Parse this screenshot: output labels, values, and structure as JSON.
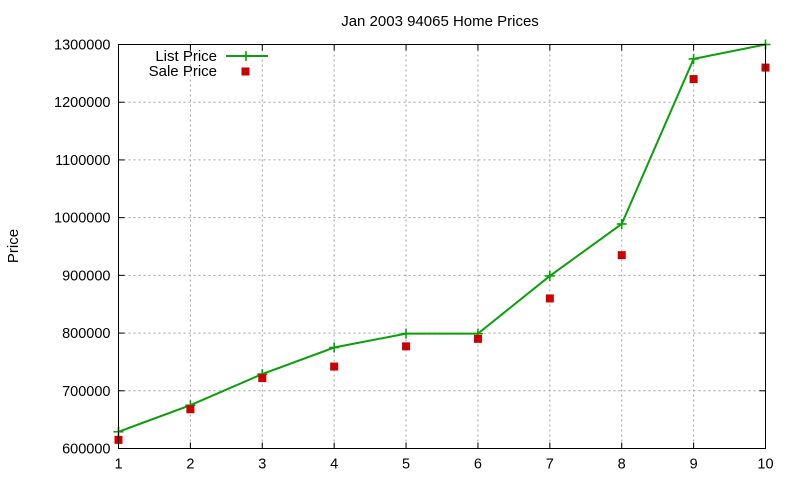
{
  "chart_data": {
    "type": "line",
    "title": "Jan 2003 94065 Home Prices",
    "xlabel": "",
    "ylabel": "Price",
    "x": [
      1,
      2,
      3,
      4,
      5,
      6,
      7,
      8,
      9,
      10
    ],
    "xticks": [
      "1",
      "2",
      "3",
      "4",
      "5",
      "6",
      "7",
      "8",
      "9",
      "10"
    ],
    "yticks": [
      "600000",
      "700000",
      "800000",
      "900000",
      "1000000",
      "1100000",
      "1200000",
      "1300000"
    ],
    "xlim": [
      1,
      10
    ],
    "ylim": [
      600000,
      1300000
    ],
    "grid": true,
    "legend_position": "top-left",
    "series": [
      {
        "name": "List Price",
        "style": "line-with-plus-markers",
        "color": "#0aa00a",
        "values": [
          629000,
          675000,
          729000,
          775000,
          799000,
          799000,
          899000,
          989000,
          1275000,
          1300000
        ]
      },
      {
        "name": "Sale Price",
        "style": "square-markers",
        "color": "#cc0000",
        "values": [
          615000,
          668000,
          722000,
          742000,
          777000,
          790000,
          860000,
          935000,
          1240000,
          1260000
        ]
      }
    ]
  }
}
